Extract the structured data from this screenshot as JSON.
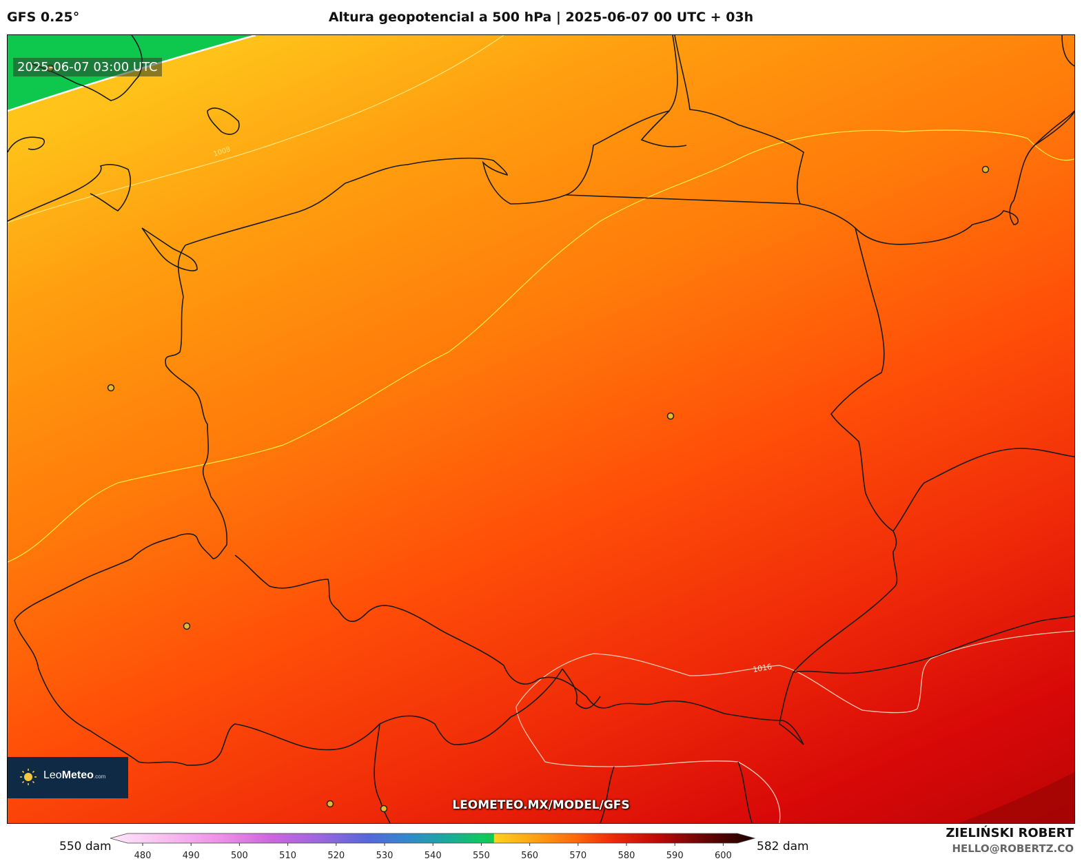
{
  "header": {
    "model": "GFS 0.25°",
    "title": "Altura geopotencial a 500 hPa | 2025-06-07 00 UTC + 03h"
  },
  "map": {
    "valid_time": "2025-06-07 03:00 UTC",
    "url": "LEOMETEO.MX/MODEL/GFS",
    "isobar_labels": [
      "1008",
      "1016"
    ],
    "city_marker_color": "#e8b830",
    "land_border_color": "#1a1a1a"
  },
  "logo": {
    "name_plain": "Leo",
    "name_bold": "Meteo",
    "suffix": ".com"
  },
  "colorbar": {
    "min_label": "550 dam",
    "max_label": "582 dam",
    "ticks": [
      "480",
      "490",
      "500",
      "510",
      "520",
      "530",
      "540",
      "550",
      "560",
      "570",
      "580",
      "590",
      "600"
    ]
  },
  "author": {
    "name": "ZIELIŃSKI ROBERT",
    "email": "HELLO@ROBERTZ.CO"
  }
}
